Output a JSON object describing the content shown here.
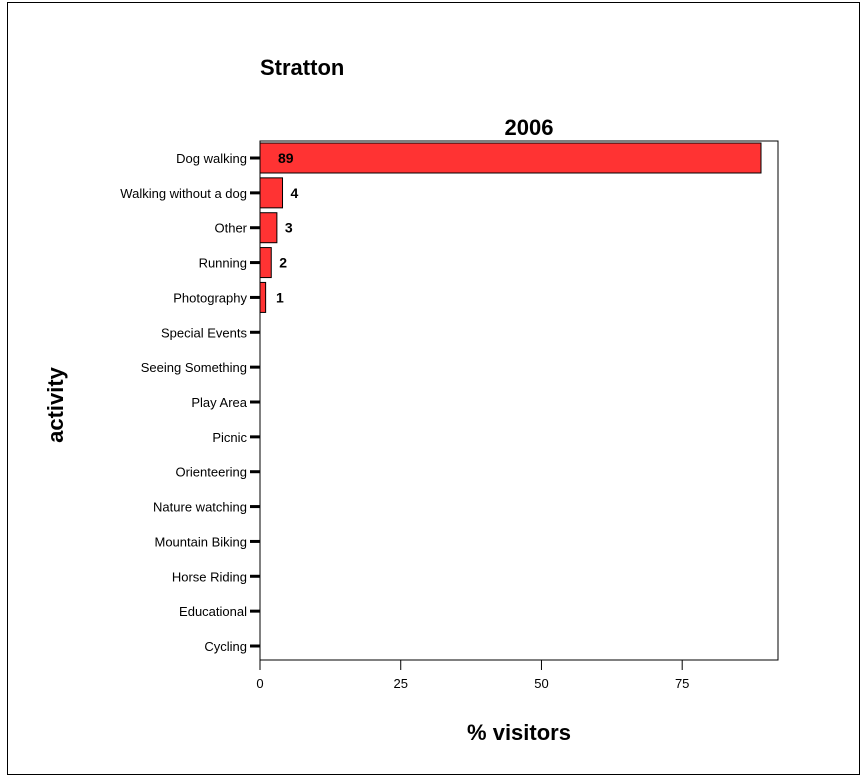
{
  "chart_data": {
    "type": "bar",
    "orientation": "horizontal",
    "title": "Stratton",
    "subtitle": "2006",
    "xlabel": "% visitors",
    "ylabel": "activity",
    "xlim": [
      0,
      93
    ],
    "xticks": [
      0,
      25,
      50,
      75
    ],
    "categories": [
      "Dog walking",
      "Walking without a dog",
      "Other",
      "Running",
      "Photography",
      "Special Events",
      "Seeing Something",
      "Play Area",
      "Picnic",
      "Orienteering",
      "Nature watching",
      "Mountain Biking",
      "Horse Riding",
      "Educational",
      "Cycling"
    ],
    "values": [
      89,
      4,
      3,
      2,
      1,
      0,
      0,
      0,
      0,
      0,
      0,
      0,
      0,
      0,
      0
    ],
    "data_labels": [
      "89",
      "4",
      "3",
      "2",
      "1",
      "",
      "",
      "",
      "",
      "",
      "",
      "",
      "",
      "",
      ""
    ],
    "bar_color": "#ff3333",
    "grid": false,
    "legend": "none"
  }
}
